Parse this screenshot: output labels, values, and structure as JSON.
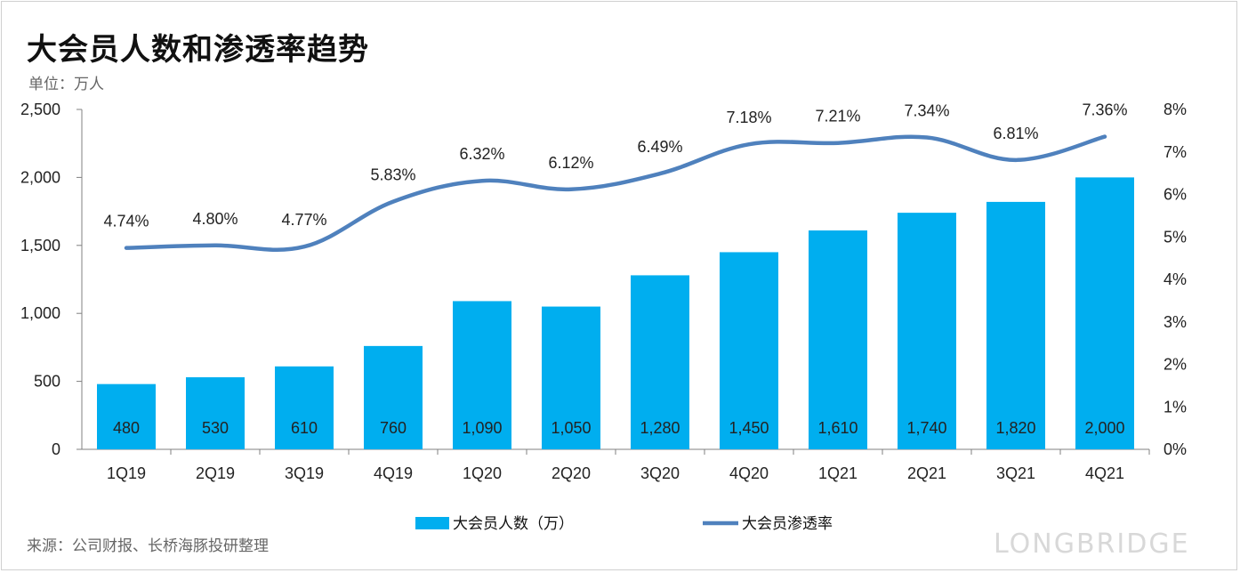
{
  "title": "大会员人数和渗透率趋势",
  "unit_label": "单位：万人",
  "source": "来源：公司财报、长桥海豚投研整理",
  "brand": "LONGBRIDGE",
  "colors": {
    "bar": "#00aeef",
    "line": "#4f81bd",
    "axis": "#808080"
  },
  "chart_data": {
    "type": "bar",
    "categories": [
      "1Q19",
      "2Q19",
      "3Q19",
      "4Q19",
      "1Q20",
      "2Q20",
      "3Q20",
      "4Q20",
      "1Q21",
      "2Q21",
      "3Q21",
      "4Q21"
    ],
    "series": [
      {
        "name": "大会员人数（万）",
        "type": "bar",
        "axis": "left",
        "values": [
          480,
          530,
          610,
          760,
          1090,
          1050,
          1280,
          1450,
          1610,
          1740,
          1820,
          2000
        ],
        "labels": [
          "480",
          "530",
          "610",
          "760",
          "1,090",
          "1,050",
          "1,280",
          "1,450",
          "1,610",
          "1,740",
          "1,820",
          "2,000"
        ]
      },
      {
        "name": "大会员渗透率",
        "type": "line",
        "axis": "right",
        "values": [
          4.74,
          4.8,
          4.77,
          5.83,
          6.32,
          6.12,
          6.49,
          7.18,
          7.21,
          7.34,
          6.81,
          7.36
        ],
        "labels": [
          "4.74%",
          "4.80%",
          "4.77%",
          "5.83%",
          "6.32%",
          "6.12%",
          "6.49%",
          "7.18%",
          "7.21%",
          "7.34%",
          "6.81%",
          "7.36%"
        ]
      }
    ],
    "y_left": {
      "min": 0,
      "max": 2500,
      "ticks": [
        0,
        500,
        1000,
        1500,
        2000,
        2500
      ],
      "tick_labels": [
        "0",
        "500",
        "1,000",
        "1,500",
        "2,000",
        "2,500"
      ]
    },
    "y_right": {
      "min": 0,
      "max": 8,
      "ticks": [
        0,
        1,
        2,
        3,
        4,
        5,
        6,
        7,
        8
      ],
      "tick_labels": [
        "0%",
        "1%",
        "2%",
        "3%",
        "4%",
        "5%",
        "6%",
        "7%",
        "8%"
      ]
    },
    "legend": {
      "placement": "bottom",
      "items": [
        {
          "label": "大会员人数（万）",
          "marker": "bar"
        },
        {
          "label": "大会员渗透率",
          "marker": "line"
        }
      ]
    },
    "grid": false
  }
}
